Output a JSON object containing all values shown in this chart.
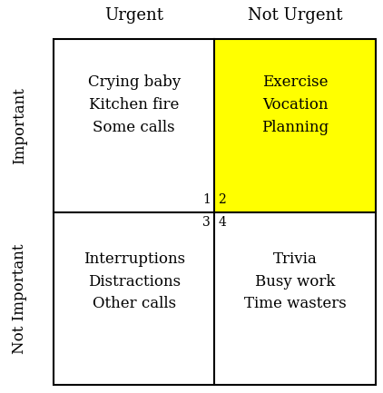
{
  "title_urgent": "Urgent",
  "title_not_urgent": "Not Urgent",
  "title_important": "Important",
  "title_not_important": "Not Important",
  "q1_number": "1",
  "q2_number": "2",
  "q3_number": "3",
  "q4_number": "4",
  "q1_text": "Crying baby\nKitchen fire\nSome calls",
  "q2_text": "Exercise\nVocation\nPlanning",
  "q3_text": "Interruptions\nDistractions\nOther calls",
  "q4_text": "Trivia\nBusy work\nTime wasters",
  "q2_bg_color": "#FFFF00",
  "background_color": "#FFFFFF",
  "text_color": "#000000",
  "grid_color": "#000000",
  "header_fontsize": 13,
  "quadrant_fontsize": 12,
  "number_fontsize": 10,
  "axis_label_fontsize": 12,
  "figsize": [
    4.22,
    4.33
  ],
  "dpi": 100
}
